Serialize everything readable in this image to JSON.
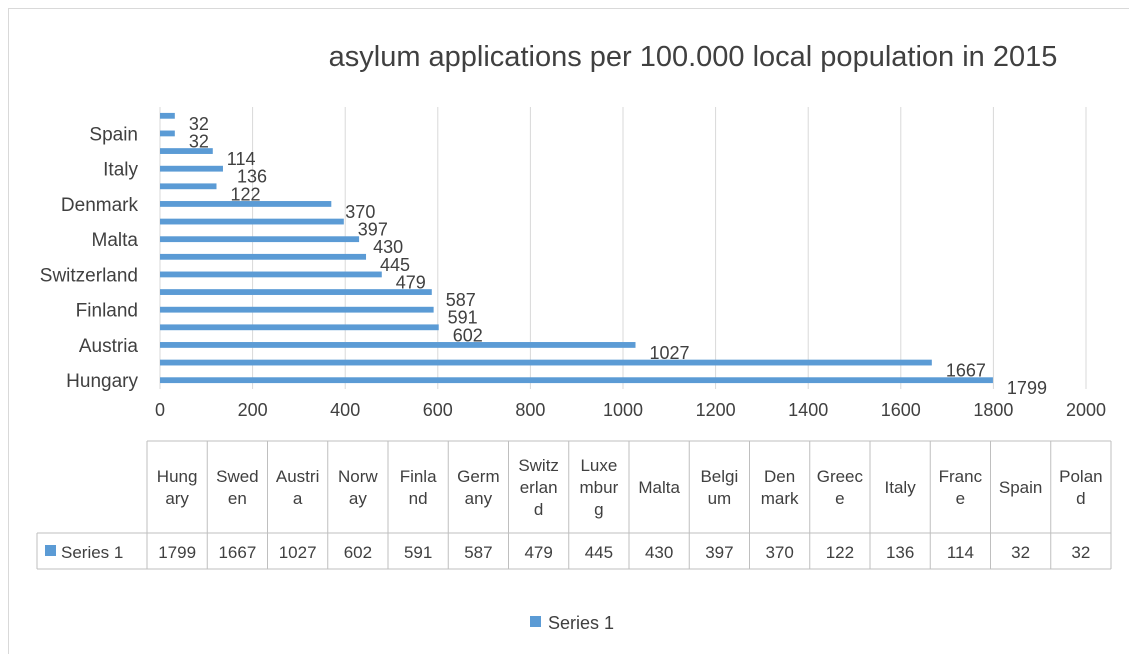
{
  "chart_data": {
    "type": "bar",
    "orientation": "horizontal",
    "title": "asylum applications per 100.000 local population in 2015",
    "categories": [
      "Hungary",
      "Sweden",
      "Austria",
      "Norway",
      "Finland",
      "Germany",
      "Switzerland",
      "Luxemburg",
      "Malta",
      "Belgium",
      "Denmark",
      "Greece",
      "Italy",
      "France",
      "Spain",
      "Poland"
    ],
    "category_axis_labels": [
      "Hungary",
      "Austria",
      "Finland",
      "Switzerland",
      "Malta",
      "Denmark",
      "Italy",
      "Spain"
    ],
    "table_headers": [
      "Hung ary",
      "Swed en",
      "Austri a",
      "Norw ay",
      "Finla nd",
      "Germ any",
      "Switz erlan d",
      "Luxe mbur g",
      "Malta",
      "Belgi um",
      "Den mark",
      "Greec e",
      "Italy",
      "Franc e",
      "Spain",
      "Polan d"
    ],
    "series": [
      {
        "name": "Series 1",
        "color": "#5b9bd5",
        "values": [
          1799,
          1667,
          1027,
          602,
          591,
          587,
          479,
          445,
          430,
          397,
          370,
          122,
          136,
          114,
          32,
          32
        ]
      }
    ],
    "xlim": [
      0,
      2000
    ],
    "xticks": [
      0,
      200,
      400,
      600,
      800,
      1000,
      1200,
      1400,
      1600,
      1800,
      2000
    ],
    "grid": true,
    "data_labels": true,
    "data_table": true,
    "legend": {
      "position": "bottom",
      "entries": [
        "Series 1"
      ]
    }
  }
}
